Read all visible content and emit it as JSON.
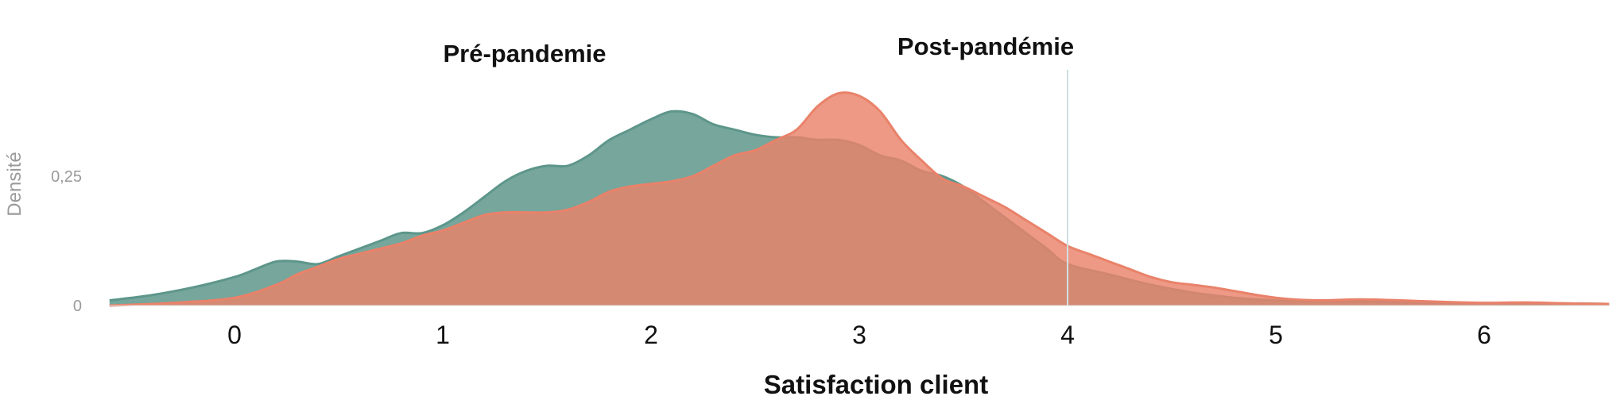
{
  "chart_data": {
    "type": "area",
    "title": "",
    "xlabel": "Satisfaction client",
    "ylabel": "Densité",
    "xlim": [
      -0.6,
      6.6
    ],
    "ylim": [
      0,
      0.46
    ],
    "x_ticks": [
      0,
      1,
      2,
      3,
      4,
      5,
      6
    ],
    "x_tick_labels": [
      "0",
      "1",
      "2",
      "3",
      "4",
      "5",
      "6"
    ],
    "y_ticks": [
      0,
      0.25
    ],
    "y_tick_labels": [
      "0",
      "0,25"
    ],
    "grid": false,
    "legend": "none",
    "reference_line_x": 4,
    "series": [
      {
        "name": "Pré-pandemie",
        "color": "#5e968b",
        "x": [
          -0.6,
          -0.4,
          -0.2,
          0.0,
          0.1,
          0.2,
          0.3,
          0.4,
          0.5,
          0.6,
          0.7,
          0.8,
          0.9,
          1.0,
          1.1,
          1.2,
          1.3,
          1.4,
          1.5,
          1.6,
          1.7,
          1.8,
          1.9,
          2.0,
          2.1,
          2.2,
          2.3,
          2.4,
          2.5,
          2.6,
          2.7,
          2.8,
          2.9,
          3.0,
          3.1,
          3.2,
          3.3,
          3.4,
          3.5,
          3.6,
          3.7,
          3.8,
          3.9,
          4.0,
          4.2,
          4.4,
          4.6,
          4.8,
          5.0,
          5.2,
          5.4,
          5.6,
          5.8,
          6.0,
          6.2,
          6.4,
          6.6
        ],
        "values": [
          0.01,
          0.02,
          0.035,
          0.055,
          0.07,
          0.085,
          0.085,
          0.08,
          0.095,
          0.11,
          0.125,
          0.14,
          0.14,
          0.155,
          0.18,
          0.21,
          0.24,
          0.26,
          0.27,
          0.27,
          0.29,
          0.32,
          0.34,
          0.36,
          0.375,
          0.37,
          0.35,
          0.34,
          0.33,
          0.325,
          0.325,
          0.32,
          0.32,
          0.31,
          0.29,
          0.28,
          0.26,
          0.25,
          0.23,
          0.2,
          0.17,
          0.14,
          0.11,
          0.08,
          0.06,
          0.04,
          0.025,
          0.015,
          0.01,
          0.008,
          0.008,
          0.006,
          0.005,
          0.005,
          0.004,
          0.004,
          0.003
        ]
      },
      {
        "name": "Post-pandémie",
        "color": "#e9826a",
        "x": [
          -0.6,
          -0.3,
          0.0,
          0.2,
          0.3,
          0.4,
          0.5,
          0.6,
          0.7,
          0.8,
          0.9,
          1.0,
          1.1,
          1.2,
          1.3,
          1.4,
          1.5,
          1.6,
          1.7,
          1.8,
          1.9,
          2.0,
          2.1,
          2.2,
          2.3,
          2.4,
          2.5,
          2.6,
          2.7,
          2.8,
          2.9,
          3.0,
          3.1,
          3.2,
          3.3,
          3.4,
          3.5,
          3.6,
          3.7,
          3.8,
          3.9,
          4.0,
          4.1,
          4.2,
          4.3,
          4.4,
          4.5,
          4.6,
          4.7,
          4.8,
          5.0,
          5.2,
          5.4,
          5.6,
          5.8,
          6.0,
          6.2,
          6.4,
          6.6
        ],
        "values": [
          0.0,
          0.005,
          0.015,
          0.04,
          0.06,
          0.075,
          0.09,
          0.1,
          0.11,
          0.12,
          0.135,
          0.145,
          0.16,
          0.175,
          0.18,
          0.18,
          0.18,
          0.185,
          0.2,
          0.22,
          0.23,
          0.235,
          0.24,
          0.25,
          0.27,
          0.29,
          0.3,
          0.32,
          0.34,
          0.385,
          0.41,
          0.405,
          0.375,
          0.32,
          0.28,
          0.245,
          0.23,
          0.21,
          0.19,
          0.165,
          0.14,
          0.115,
          0.1,
          0.085,
          0.07,
          0.055,
          0.045,
          0.04,
          0.035,
          0.028,
          0.015,
          0.01,
          0.012,
          0.01,
          0.007,
          0.005,
          0.006,
          0.004,
          0.003
        ]
      }
    ]
  }
}
